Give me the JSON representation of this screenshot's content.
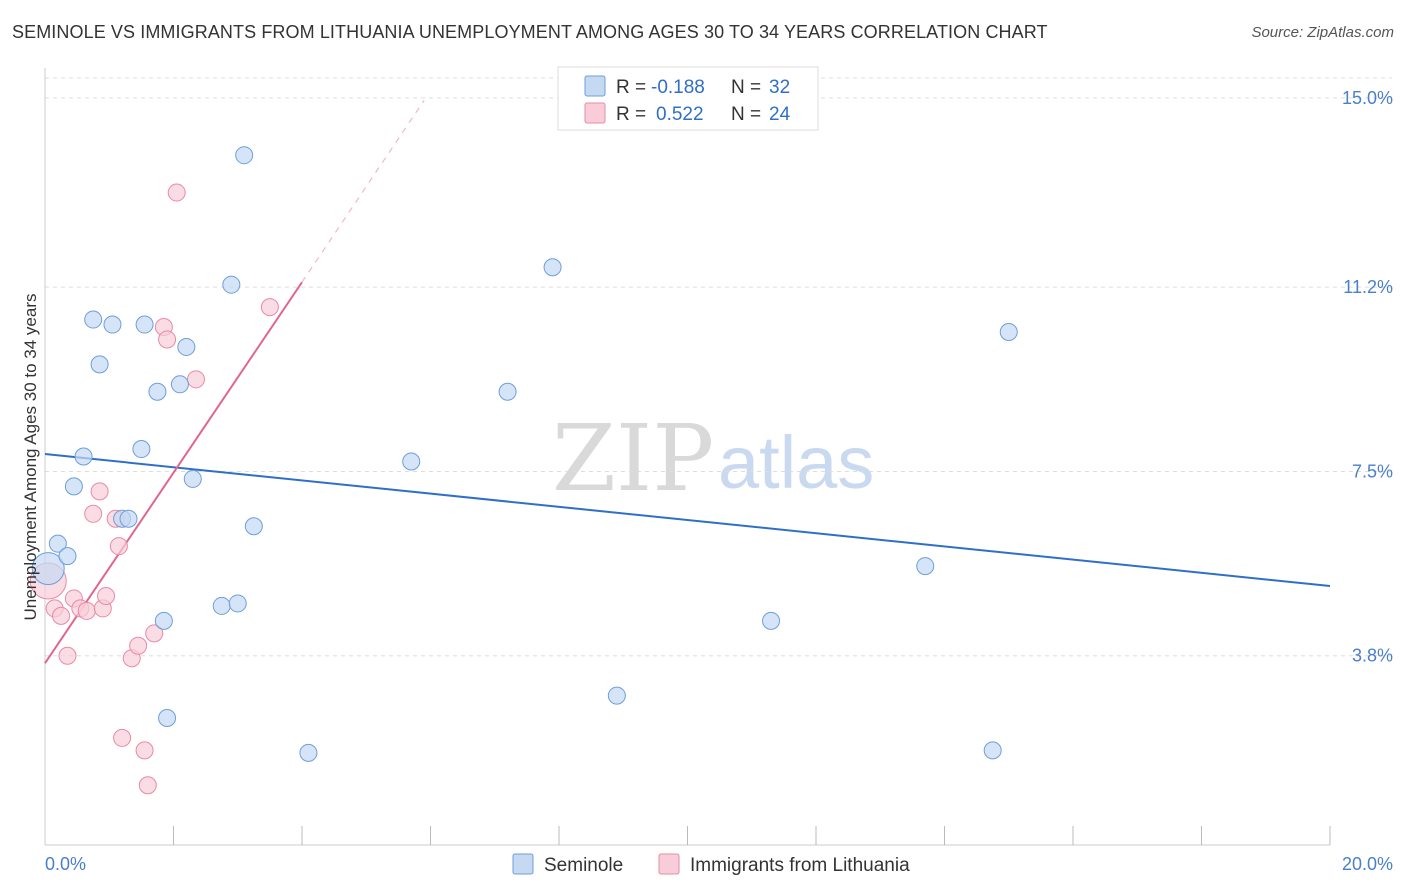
{
  "header": {
    "title": "SEMINOLE VS IMMIGRANTS FROM LITHUANIA UNEMPLOYMENT AMONG AGES 30 TO 34 YEARS CORRELATION CHART",
    "source": "Source: ZipAtlas.com"
  },
  "watermark": {
    "zip": "ZIP",
    "atlas": "atlas"
  },
  "legend": {
    "r_label": "R =",
    "n_label": "N =",
    "rows": [
      {
        "r": "-0.188",
        "n": "32"
      },
      {
        "r": "0.522",
        "n": "24"
      }
    ]
  },
  "colors": {
    "seminole_fill": "#c5d9f3",
    "seminole_stroke": "#6d9fd8",
    "seminole_line": "#2f6fc9",
    "lithuania_fill": "#f8cdd9",
    "lithuania_stroke": "#e98aa7",
    "lithuania_line": "#e0668f",
    "grid": "#dddddd",
    "axis_text": "#4a7fcb"
  },
  "chart_data": {
    "type": "scatter",
    "title": "SEMINOLE VS IMMIGRANTS FROM LITHUANIA UNEMPLOYMENT AMONG AGES 30 TO 34 YEARS CORRELATION CHART",
    "xlabel": "",
    "ylabel": "Unemployment Among Ages 30 to 34 years",
    "xlim": [
      0,
      20
    ],
    "ylim": [
      0,
      15.4
    ],
    "x_tick_labels": [
      {
        "value": 0,
        "label": "0.0%"
      },
      {
        "value": 20,
        "label": "20.0%"
      }
    ],
    "y_tick_labels": [
      {
        "value": 3.8,
        "label": "3.8%"
      },
      {
        "value": 7.5,
        "label": "7.5%"
      },
      {
        "value": 11.2,
        "label": "11.2%"
      },
      {
        "value": 15.0,
        "label": "15.0%"
      }
    ],
    "x_minor_ticks": [
      2,
      4,
      6,
      8,
      10,
      12,
      14,
      16,
      18,
      20
    ],
    "grid": true,
    "series": [
      {
        "name": "Seminole",
        "r": -0.188,
        "n": 32,
        "points": [
          {
            "x": 0.05,
            "y": 5.55
          },
          {
            "x": 0.2,
            "y": 6.05
          },
          {
            "x": 0.35,
            "y": 5.8
          },
          {
            "x": 0.45,
            "y": 7.2
          },
          {
            "x": 0.6,
            "y": 7.8
          },
          {
            "x": 0.75,
            "y": 10.55
          },
          {
            "x": 0.85,
            "y": 9.65
          },
          {
            "x": 1.05,
            "y": 10.45
          },
          {
            "x": 1.2,
            "y": 6.55
          },
          {
            "x": 1.3,
            "y": 6.55
          },
          {
            "x": 1.5,
            "y": 7.95
          },
          {
            "x": 1.55,
            "y": 10.45
          },
          {
            "x": 1.75,
            "y": 9.1
          },
          {
            "x": 1.85,
            "y": 4.5
          },
          {
            "x": 1.9,
            "y": 2.55
          },
          {
            "x": 2.1,
            "y": 9.25
          },
          {
            "x": 2.2,
            "y": 10.0
          },
          {
            "x": 2.3,
            "y": 7.35
          },
          {
            "x": 2.75,
            "y": 4.8
          },
          {
            "x": 2.9,
            "y": 11.25
          },
          {
            "x": 3.0,
            "y": 4.85
          },
          {
            "x": 3.1,
            "y": 13.85
          },
          {
            "x": 3.25,
            "y": 6.4
          },
          {
            "x": 4.1,
            "y": 1.85
          },
          {
            "x": 5.7,
            "y": 7.7
          },
          {
            "x": 7.2,
            "y": 9.1
          },
          {
            "x": 7.9,
            "y": 11.6
          },
          {
            "x": 8.9,
            "y": 3.0
          },
          {
            "x": 11.3,
            "y": 4.5
          },
          {
            "x": 13.7,
            "y": 5.6
          },
          {
            "x": 14.75,
            "y": 1.9
          },
          {
            "x": 15.0,
            "y": 10.3
          }
        ],
        "trendline": {
          "x": [
            0,
            20
          ],
          "y": [
            7.85,
            5.2
          ]
        }
      },
      {
        "name": "Immigrants from Lithuania",
        "r": 0.522,
        "n": 24,
        "points": [
          {
            "x": 0.05,
            "y": 5.3
          },
          {
            "x": 0.15,
            "y": 4.75
          },
          {
            "x": 0.25,
            "y": 4.6
          },
          {
            "x": 0.35,
            "y": 3.8
          },
          {
            "x": 0.45,
            "y": 4.95
          },
          {
            "x": 0.55,
            "y": 4.75
          },
          {
            "x": 0.65,
            "y": 4.7
          },
          {
            "x": 0.75,
            "y": 6.65
          },
          {
            "x": 0.85,
            "y": 7.1
          },
          {
            "x": 0.9,
            "y": 4.75
          },
          {
            "x": 0.95,
            "y": 5.0
          },
          {
            "x": 1.1,
            "y": 6.55
          },
          {
            "x": 1.15,
            "y": 6.0
          },
          {
            "x": 1.2,
            "y": 2.15
          },
          {
            "x": 1.35,
            "y": 3.75
          },
          {
            "x": 1.45,
            "y": 4.0
          },
          {
            "x": 1.55,
            "y": 1.9
          },
          {
            "x": 1.6,
            "y": 1.2
          },
          {
            "x": 1.7,
            "y": 4.25
          },
          {
            "x": 1.85,
            "y": 10.4
          },
          {
            "x": 1.9,
            "y": 10.15
          },
          {
            "x": 2.05,
            "y": 13.1
          },
          {
            "x": 2.35,
            "y": 9.35
          },
          {
            "x": 3.5,
            "y": 10.8
          }
        ],
        "trendline": {
          "x": [
            0,
            4.0
          ],
          "y": [
            3.65,
            11.3
          ]
        },
        "trendline_extension": {
          "x": [
            4.0,
            5.9
          ],
          "y": [
            11.3,
            14.95
          ]
        }
      }
    ]
  },
  "bottom_legend": {
    "items": [
      {
        "label": "Seminole"
      },
      {
        "label": "Immigrants from Lithuania"
      }
    ]
  }
}
